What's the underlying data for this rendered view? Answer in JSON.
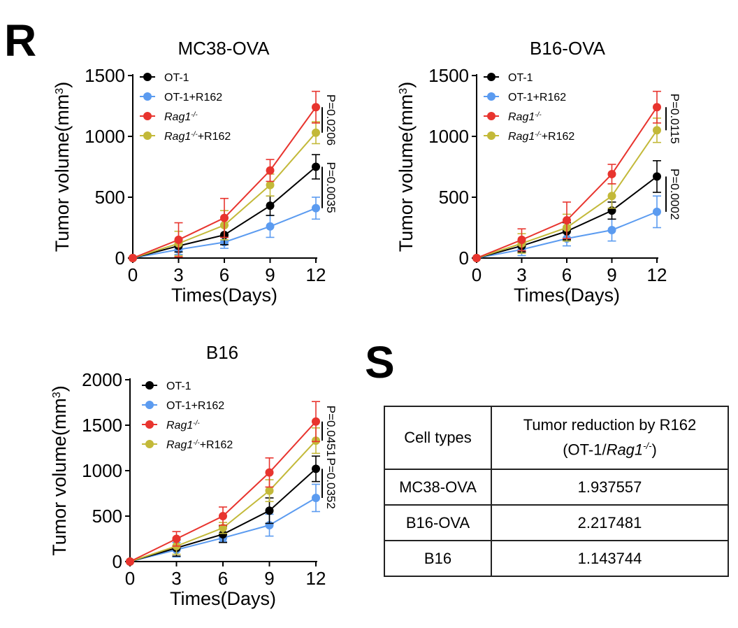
{
  "panels": {
    "r": "R",
    "s": "S"
  },
  "legend_entries": [
    {
      "key": "ot1",
      "name": "OT-1",
      "sup": "",
      "suffix": "",
      "italic": false,
      "color": "#000000"
    },
    {
      "key": "ot1r",
      "name": "OT-1+R162",
      "sup": "",
      "suffix": "",
      "italic": false,
      "color": "#5b9bf0"
    },
    {
      "key": "rag",
      "name": "Rag1",
      "sup": "-/-",
      "suffix": "",
      "italic": true,
      "color": "#e8342e"
    },
    {
      "key": "ragr",
      "name": "Rag1",
      "sup": "-/-",
      "suffix": "+R162",
      "italic": true,
      "color": "#c3b939"
    }
  ],
  "chart_data": [
    {
      "type": "line",
      "title": "MC38-OVA",
      "xlabel": "Times(Days)",
      "ylabel_prefix": "Tumor volume(mm",
      "ylabel_sup": "3",
      "ylabel_suffix": ")",
      "x": [
        0,
        3,
        6,
        9,
        12
      ],
      "x_ticks": [
        "0",
        "3",
        "6",
        "9",
        "12"
      ],
      "y_ticks": [
        "0",
        "500",
        "1000",
        "1500"
      ],
      "ylim": [
        0,
        1500
      ],
      "series": [
        {
          "name": "OT-1",
          "values": [
            0,
            100,
            190,
            430,
            750
          ],
          "errors": [
            0,
            50,
            80,
            80,
            100
          ]
        },
        {
          "name": "OT-1+R162",
          "values": [
            0,
            70,
            130,
            260,
            410
          ],
          "errors": [
            0,
            40,
            50,
            90,
            90
          ]
        },
        {
          "name": "Rag1-/-",
          "values": [
            0,
            150,
            330,
            720,
            1240
          ],
          "errors": [
            0,
            140,
            160,
            90,
            130
          ]
        },
        {
          "name": "Rag1-/-+R162",
          "values": [
            0,
            120,
            270,
            600,
            1030
          ],
          "errors": [
            0,
            100,
            120,
            90,
            90
          ]
        }
      ],
      "pvalues": [
        {
          "label": "P=0.0206",
          "between": [
            "Rag1-/-",
            "Rag1-/-+R162"
          ]
        },
        {
          "label": "P=0.0035",
          "between": [
            "OT-1",
            "OT-1+R162"
          ]
        }
      ]
    },
    {
      "type": "line",
      "title": "B16-OVA",
      "xlabel": "Times(Days)",
      "ylabel_prefix": "Tumor volume(mm",
      "ylabel_sup": "3",
      "ylabel_suffix": ")",
      "x": [
        0,
        3,
        6,
        9,
        12
      ],
      "x_ticks": [
        "0",
        "3",
        "6",
        "9",
        "12"
      ],
      "y_ticks": [
        "0",
        "500",
        "1000",
        "1500"
      ],
      "ylim": [
        0,
        1500
      ],
      "series": [
        {
          "name": "OT-1",
          "values": [
            0,
            100,
            220,
            390,
            670
          ],
          "errors": [
            0,
            50,
            70,
            70,
            130
          ]
        },
        {
          "name": "OT-1+R162",
          "values": [
            0,
            70,
            160,
            230,
            380
          ],
          "errors": [
            0,
            50,
            60,
            90,
            130
          ]
        },
        {
          "name": "Rag1-/-",
          "values": [
            0,
            150,
            310,
            690,
            1240
          ],
          "errors": [
            0,
            90,
            150,
            80,
            130
          ]
        },
        {
          "name": "Rag1-/-+R162",
          "values": [
            0,
            120,
            250,
            510,
            1050
          ],
          "errors": [
            0,
            80,
            110,
            100,
            100
          ]
        }
      ],
      "pvalues": [
        {
          "label": "P=0.0115",
          "between": [
            "Rag1-/-",
            "Rag1-/-+R162"
          ]
        },
        {
          "label": "P=0.0002",
          "between": [
            "OT-1",
            "OT-1+R162"
          ]
        }
      ]
    },
    {
      "type": "line",
      "title": "B16",
      "xlabel": "Times(Days)",
      "ylabel_prefix": "Tumor volume(mm",
      "ylabel_sup": "3",
      "ylabel_suffix": ")",
      "x": [
        0,
        3,
        6,
        9,
        12
      ],
      "x_ticks": [
        "0",
        "3",
        "6",
        "9",
        "12"
      ],
      "y_ticks": [
        "0",
        "500",
        "1000",
        "1500",
        "2000"
      ],
      "ylim": [
        0,
        2000
      ],
      "series": [
        {
          "name": "OT-1",
          "values": [
            0,
            150,
            300,
            560,
            1020
          ],
          "errors": [
            0,
            90,
            90,
            140,
            140
          ]
        },
        {
          "name": "OT-1+R162",
          "values": [
            0,
            130,
            260,
            400,
            700
          ],
          "errors": [
            0,
            80,
            40,
            120,
            150
          ]
        },
        {
          "name": "Rag1-/-",
          "values": [
            0,
            250,
            500,
            980,
            1540
          ],
          "errors": [
            0,
            80,
            100,
            160,
            220
          ]
        },
        {
          "name": "Rag1-/-+R162",
          "values": [
            0,
            170,
            370,
            780,
            1330
          ],
          "errors": [
            0,
            90,
            60,
            120,
            140
          ]
        }
      ],
      "pvalues": [
        {
          "label": "P=0.0451",
          "between": [
            "Rag1-/-",
            "Rag1-/-+R162"
          ]
        },
        {
          "label": "P=0.0352",
          "between": [
            "OT-1",
            "OT-1+R162"
          ]
        }
      ]
    },
    {
      "type": "table",
      "header": {
        "col1": "Cell types",
        "col2_line1": "Tumor reduction by R162",
        "col2_line2_prefix": "(OT-1/",
        "col2_line2_italic": "Rag1",
        "col2_line2_sup": "-/-",
        "col2_line2_suffix": ")"
      },
      "rows": [
        {
          "cell": "MC38-OVA",
          "value": "1.937557"
        },
        {
          "cell": "B16-OVA",
          "value": "2.217481"
        },
        {
          "cell": "B16",
          "value": "1.143744"
        }
      ]
    }
  ]
}
